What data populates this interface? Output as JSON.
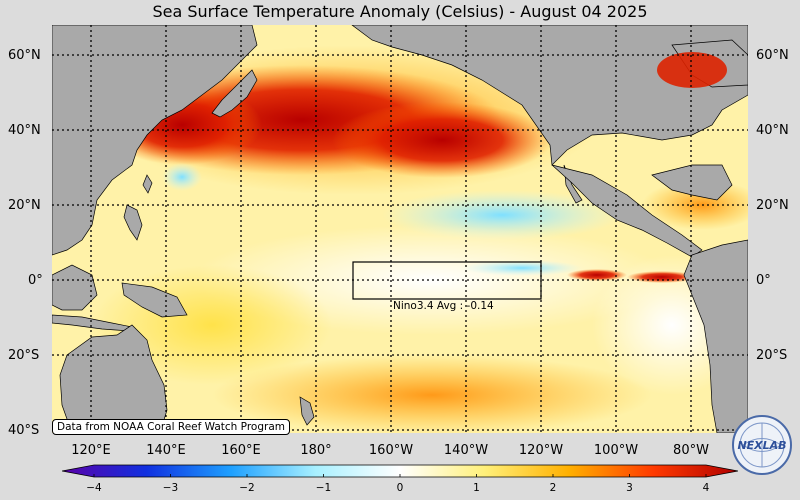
{
  "title": "Sea Surface Temperature Anomaly (Celsius) - August 04 2025",
  "lat_labels": [
    "60°N",
    "40°N",
    "20°N",
    "0°",
    "20°S",
    "40°S"
  ],
  "lon_labels": [
    "120°E",
    "140°E",
    "160°E",
    "180°",
    "160°W",
    "140°W",
    "120°W",
    "100°W",
    "80°W"
  ],
  "credit": "Data from NOAA Coral Reef Watch Program",
  "nino_label": "Nino3.4 Avg : -0.14",
  "colorbar": {
    "ticks": [
      "−4",
      "−3",
      "−2",
      "−1",
      "0",
      "1",
      "2",
      "3",
      "4"
    ],
    "colors": [
      "#5a00a8",
      "#1030e0",
      "#1ea0ff",
      "#a8f0ff",
      "#ffffff",
      "#fff07a",
      "#ffb000",
      "#ff3a00",
      "#b00000"
    ]
  },
  "logo": "NEXLAB",
  "colors": {
    "land": "#a9a9a9",
    "background": "#dcdcdc",
    "warm_anomaly": "#cc0000",
    "neutral": "#fff4b0",
    "cool_anomaly": "#a8f0ff"
  }
}
